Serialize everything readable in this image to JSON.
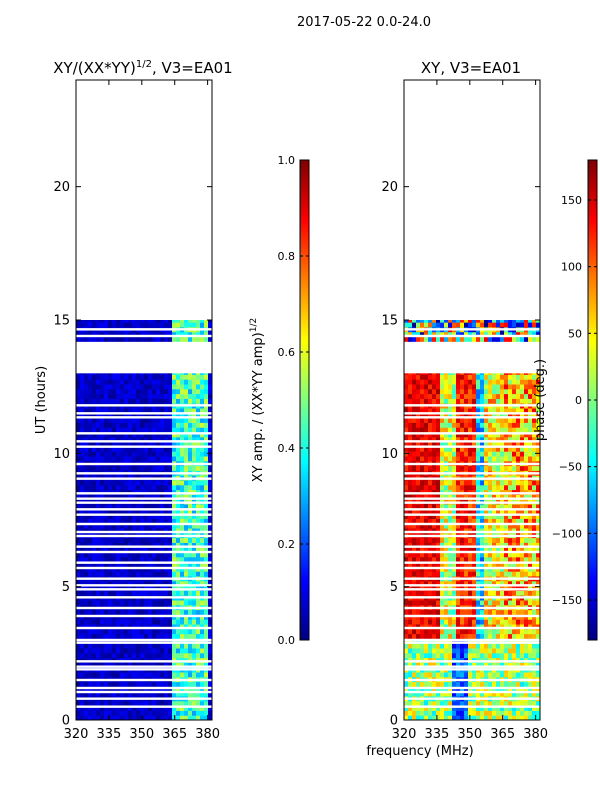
{
  "figure_title": "2017-05-22 0.0-24.0",
  "xlabel": "frequency (MHz)",
  "chart_data": [
    {
      "type": "heatmap",
      "title_main": "XY/(XX*YY)",
      "title_sup": "1/2",
      "title_tail": ", V3=EA01",
      "xlim": [
        320,
        382
      ],
      "xticks": [
        320,
        335,
        350,
        365,
        380
      ],
      "ylim": [
        0,
        24
      ],
      "yticks": [
        0,
        5,
        10,
        15,
        20
      ],
      "ylabel": "UT (hours)",
      "colorbar": {
        "label_main": "XY amp. / (XX*YY amp)",
        "label_sup": "1/2",
        "range": [
          0.0,
          1.0
        ],
        "ticks": [
          "0.0",
          "0.2",
          "0.4",
          "0.6",
          "0.8",
          "1.0"
        ],
        "colormap": "jet"
      },
      "data_time_ranges_hours": [
        [
          0,
          13.0
        ],
        [
          14.2,
          15.0
        ]
      ],
      "bright_frequency_band_mhz": [
        363,
        380
      ]
    },
    {
      "type": "heatmap",
      "title_main": "XY",
      "title_sup": "",
      "title_tail": ", V3=EA01",
      "xlim": [
        320,
        382
      ],
      "xticks": [
        320,
        335,
        350,
        365,
        380
      ],
      "ylim": [
        0,
        24
      ],
      "yticks": [
        0,
        5,
        10,
        15,
        20
      ],
      "ylabel": "",
      "colorbar": {
        "label_main": "phase (deg.)",
        "label_sup": "",
        "range": [
          -180,
          180
        ],
        "ticks": [
          "−150",
          "−100",
          "−50",
          "0",
          "50",
          "100",
          "150"
        ],
        "colormap": "jet"
      },
      "data_time_ranges_hours": [
        [
          0,
          13.0
        ],
        [
          14.2,
          15.0
        ]
      ]
    }
  ]
}
